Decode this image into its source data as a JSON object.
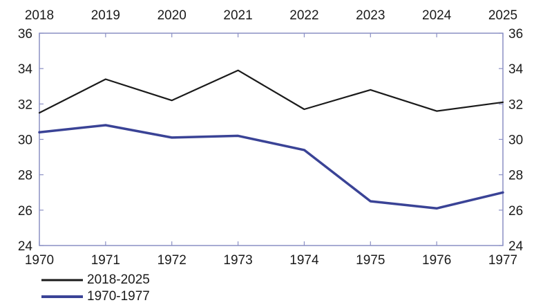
{
  "chart_data": {
    "type": "line",
    "x_bottom": [
      "1970",
      "1971",
      "1972",
      "1973",
      "1974",
      "1975",
      "1976",
      "1977"
    ],
    "x_top": [
      "2018",
      "2019",
      "2020",
      "2021",
      "2022",
      "2023",
      "2024",
      "2025"
    ],
    "ylim": [
      24,
      36
    ],
    "yticks": [
      24,
      26,
      28,
      30,
      32,
      34,
      36
    ],
    "yticks_shown_both_sides": true,
    "grid": false,
    "legend_position": "bottom-left",
    "series": [
      {
        "name": "2018-2025",
        "color": "#1a1a1a",
        "values": [
          31.5,
          33.4,
          32.2,
          33.9,
          31.7,
          32.8,
          31.6,
          32.1
        ]
      },
      {
        "name": "1970-1977",
        "color": "#3a4396",
        "values": [
          30.4,
          30.8,
          30.1,
          30.2,
          29.4,
          26.5,
          26.1,
          27.0
        ]
      }
    ]
  },
  "legend": {
    "items": [
      {
        "label": "2018-2025",
        "color": "#1a1a1a"
      },
      {
        "label": "1970-1977",
        "color": "#3a4396"
      }
    ]
  },
  "colors": {
    "axis_frame": "#8a8fc4"
  }
}
